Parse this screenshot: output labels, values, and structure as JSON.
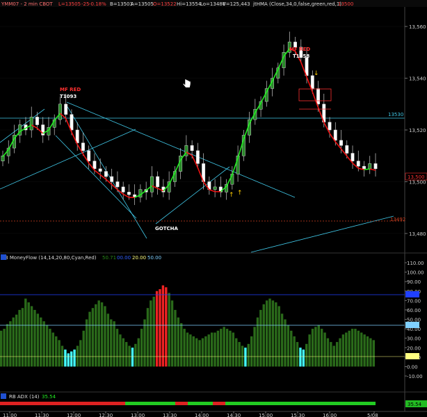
{
  "header": {
    "symbol": "YMM07 - 2 min  CBOT",
    "last": "L=13505",
    "change": "-25",
    "change_pct": "-0.18%",
    "bid": "B=13503",
    "ask": "A=13505",
    "open": "O=13522",
    "high": "Hi=13554",
    "low": "Lo=13486",
    "volume": "V=125,443",
    "study": "jtHMA (Close,34,0,false,green,red,1)",
    "study_value": "13500"
  },
  "colors": {
    "up": "#3cc83c",
    "down": "#e03030",
    "hma_up": "#22ee22",
    "hma_down": "#ee1111",
    "cyan": "#40c8e8",
    "ind_green": "#2a6a1a",
    "ind_red": "#ee2222",
    "ind_cyan": "#44ffff"
  },
  "annotations": {
    "mf_red_1": "MF RED",
    "t1093": "T1093",
    "mf_red_2": "MF RED",
    "t1258": "T1258",
    "gotcha": "GOTCHA"
  },
  "price_axis": {
    "ticks": [
      "13,560",
      "13,540",
      "13,520",
      "13,500",
      "13,480"
    ],
    "level_13530": "13530",
    "current_tag": "13,500",
    "dotted_tag": "13492"
  },
  "moneyflow": {
    "title": "RB MoneyFlow (14,14,20,80,Cyan,Red)",
    "v1": "50.71",
    "v2": "00.00",
    "v3": "20.00",
    "v4": "50.00",
    "ticks": [
      "110.00",
      "100.00",
      "90.00",
      "80.00",
      "70.00",
      "60.00",
      "50.00",
      "40.00",
      "30.00",
      "20.00",
      "10.00",
      "0.00",
      "-10.00"
    ]
  },
  "adx": {
    "title": "RB ADX (14)",
    "value": "35.54",
    "tag": "35.54"
  },
  "time_axis": [
    "11:00",
    "11:30",
    "12:00",
    "12:30",
    "13:00",
    "13:30",
    "14:00",
    "14:30",
    "15:00",
    "15:30",
    "16:00",
    "5/08"
  ],
  "chart_data": {
    "type": "candlestick",
    "ylim": [
      13473,
      13567
    ],
    "horizontal_level": 13530,
    "dotted_level": 13492,
    "close_series": [
      13510,
      13513,
      13518,
      13522,
      13520,
      13525,
      13522,
      13518,
      13521,
      13524,
      13530,
      13526,
      13520,
      13515,
      13512,
      13508,
      13505,
      13504,
      13502,
      13500,
      13498,
      13496,
      13495,
      13494,
      13497,
      13496,
      13502,
      13498,
      13496,
      13500,
      13504,
      13510,
      13514,
      13512,
      13507,
      13500,
      13497,
      13498,
      13496,
      13499,
      13503,
      13510,
      13518,
      13524,
      13528,
      13531,
      13536,
      13540,
      13544,
      13550,
      13554,
      13552,
      13548,
      13541,
      13536,
      13530,
      13523,
      13520,
      13516,
      13514,
      13511,
      13508,
      13506,
      13505,
      13507,
      13505
    ],
    "moneyflow_values": [
      38,
      40,
      45,
      48,
      52,
      55,
      60,
      62,
      72,
      68,
      64,
      60,
      56,
      52,
      48,
      44,
      40,
      36,
      32,
      28,
      22,
      18,
      14,
      16,
      18,
      22,
      28,
      38,
      50,
      58,
      62,
      66,
      70,
      68,
      64,
      56,
      50,
      48,
      40,
      34,
      30,
      26,
      22,
      20,
      24,
      30,
      40,
      50,
      62,
      70,
      74,
      80,
      82,
      86,
      84,
      78,
      70,
      60,
      52,
      46,
      40,
      36,
      34,
      32,
      30,
      28,
      30,
      32,
      34,
      36,
      36,
      38,
      40,
      42,
      40,
      38,
      36,
      30,
      26,
      22,
      20,
      24,
      32,
      42,
      52,
      60,
      66,
      70,
      72,
      70,
      68,
      64,
      56,
      50,
      44,
      38,
      32,
      26,
      20,
      18,
      24,
      34,
      40,
      42,
      44,
      40,
      36,
      30,
      26,
      22,
      26,
      30,
      34,
      36,
      38,
      40,
      40,
      38,
      36,
      34,
      32,
      30,
      28
    ],
    "moneyflow_zero_row_low": 0,
    "adx_value": 35.54
  }
}
